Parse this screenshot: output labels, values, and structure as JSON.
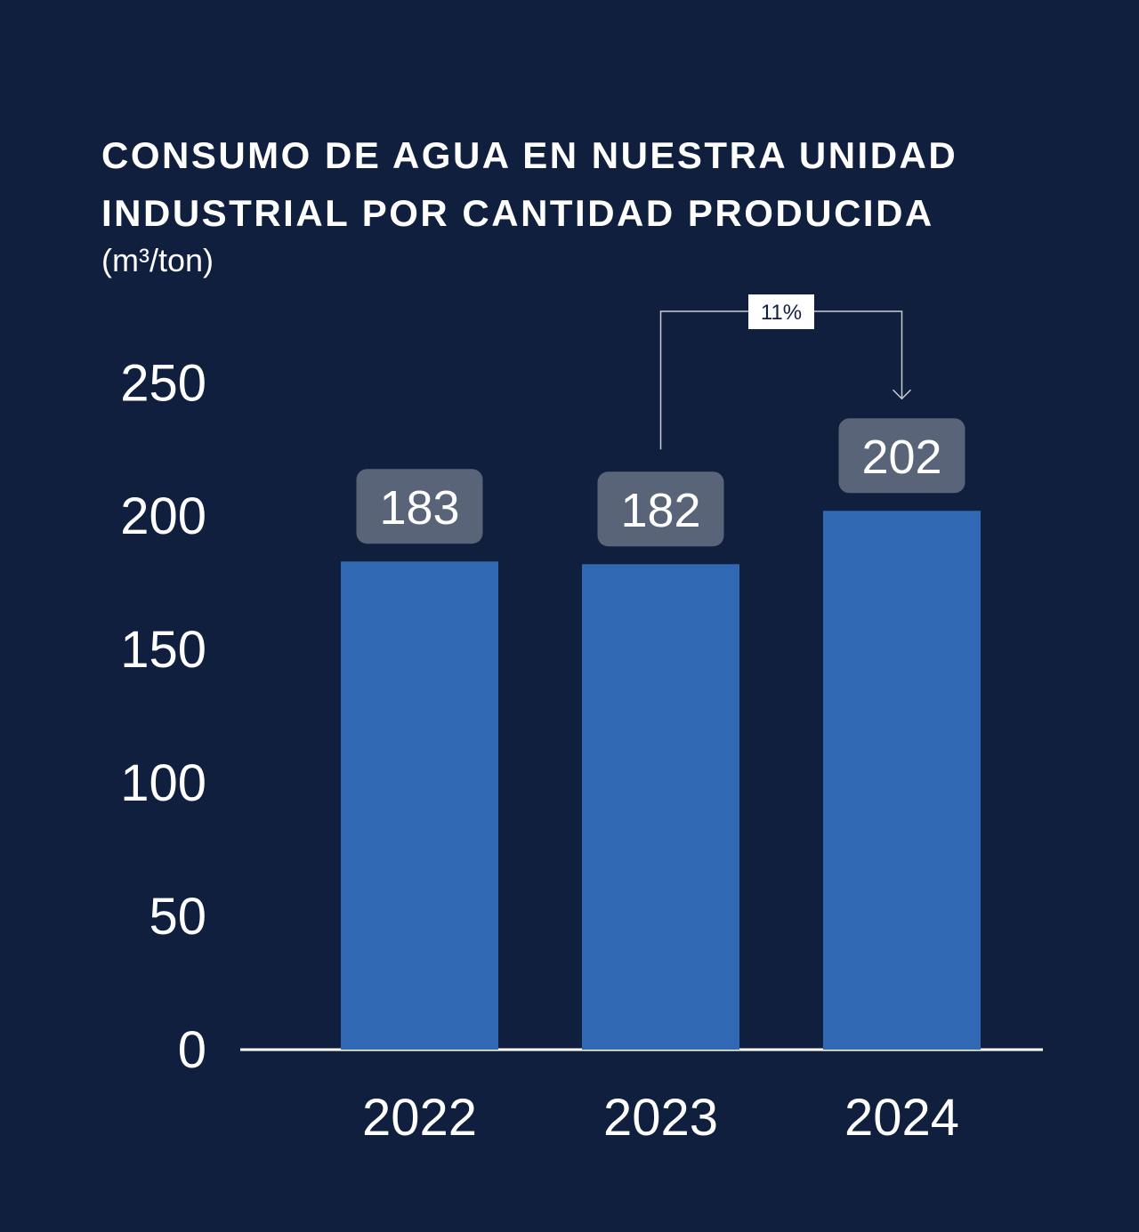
{
  "chart_data": {
    "type": "bar",
    "title_line1": "CONSUMO DE AGUA EN NUESTRA UNIDAD",
    "title_line2": "INDUSTRIAL POR CANTIDAD PRODUCIDA",
    "unit": "(m³/ton)",
    "categories": [
      "2022",
      "2023",
      "2024"
    ],
    "values": [
      183,
      182,
      202
    ],
    "data_labels": [
      "183",
      "182",
      "202"
    ],
    "yticks": [
      "0",
      "50",
      "100",
      "150",
      "200",
      "250"
    ],
    "ytick_values": [
      0,
      50,
      100,
      150,
      200,
      250
    ],
    "ylim": [
      0,
      250
    ],
    "xlabel": "",
    "ylabel": "",
    "grid": false,
    "annotation": {
      "text": "11%",
      "from": "2023",
      "to": "2024"
    },
    "colors": {
      "background": "#0f1f3d",
      "bar": "#3068b3",
      "label_box": "#5a6478"
    }
  }
}
